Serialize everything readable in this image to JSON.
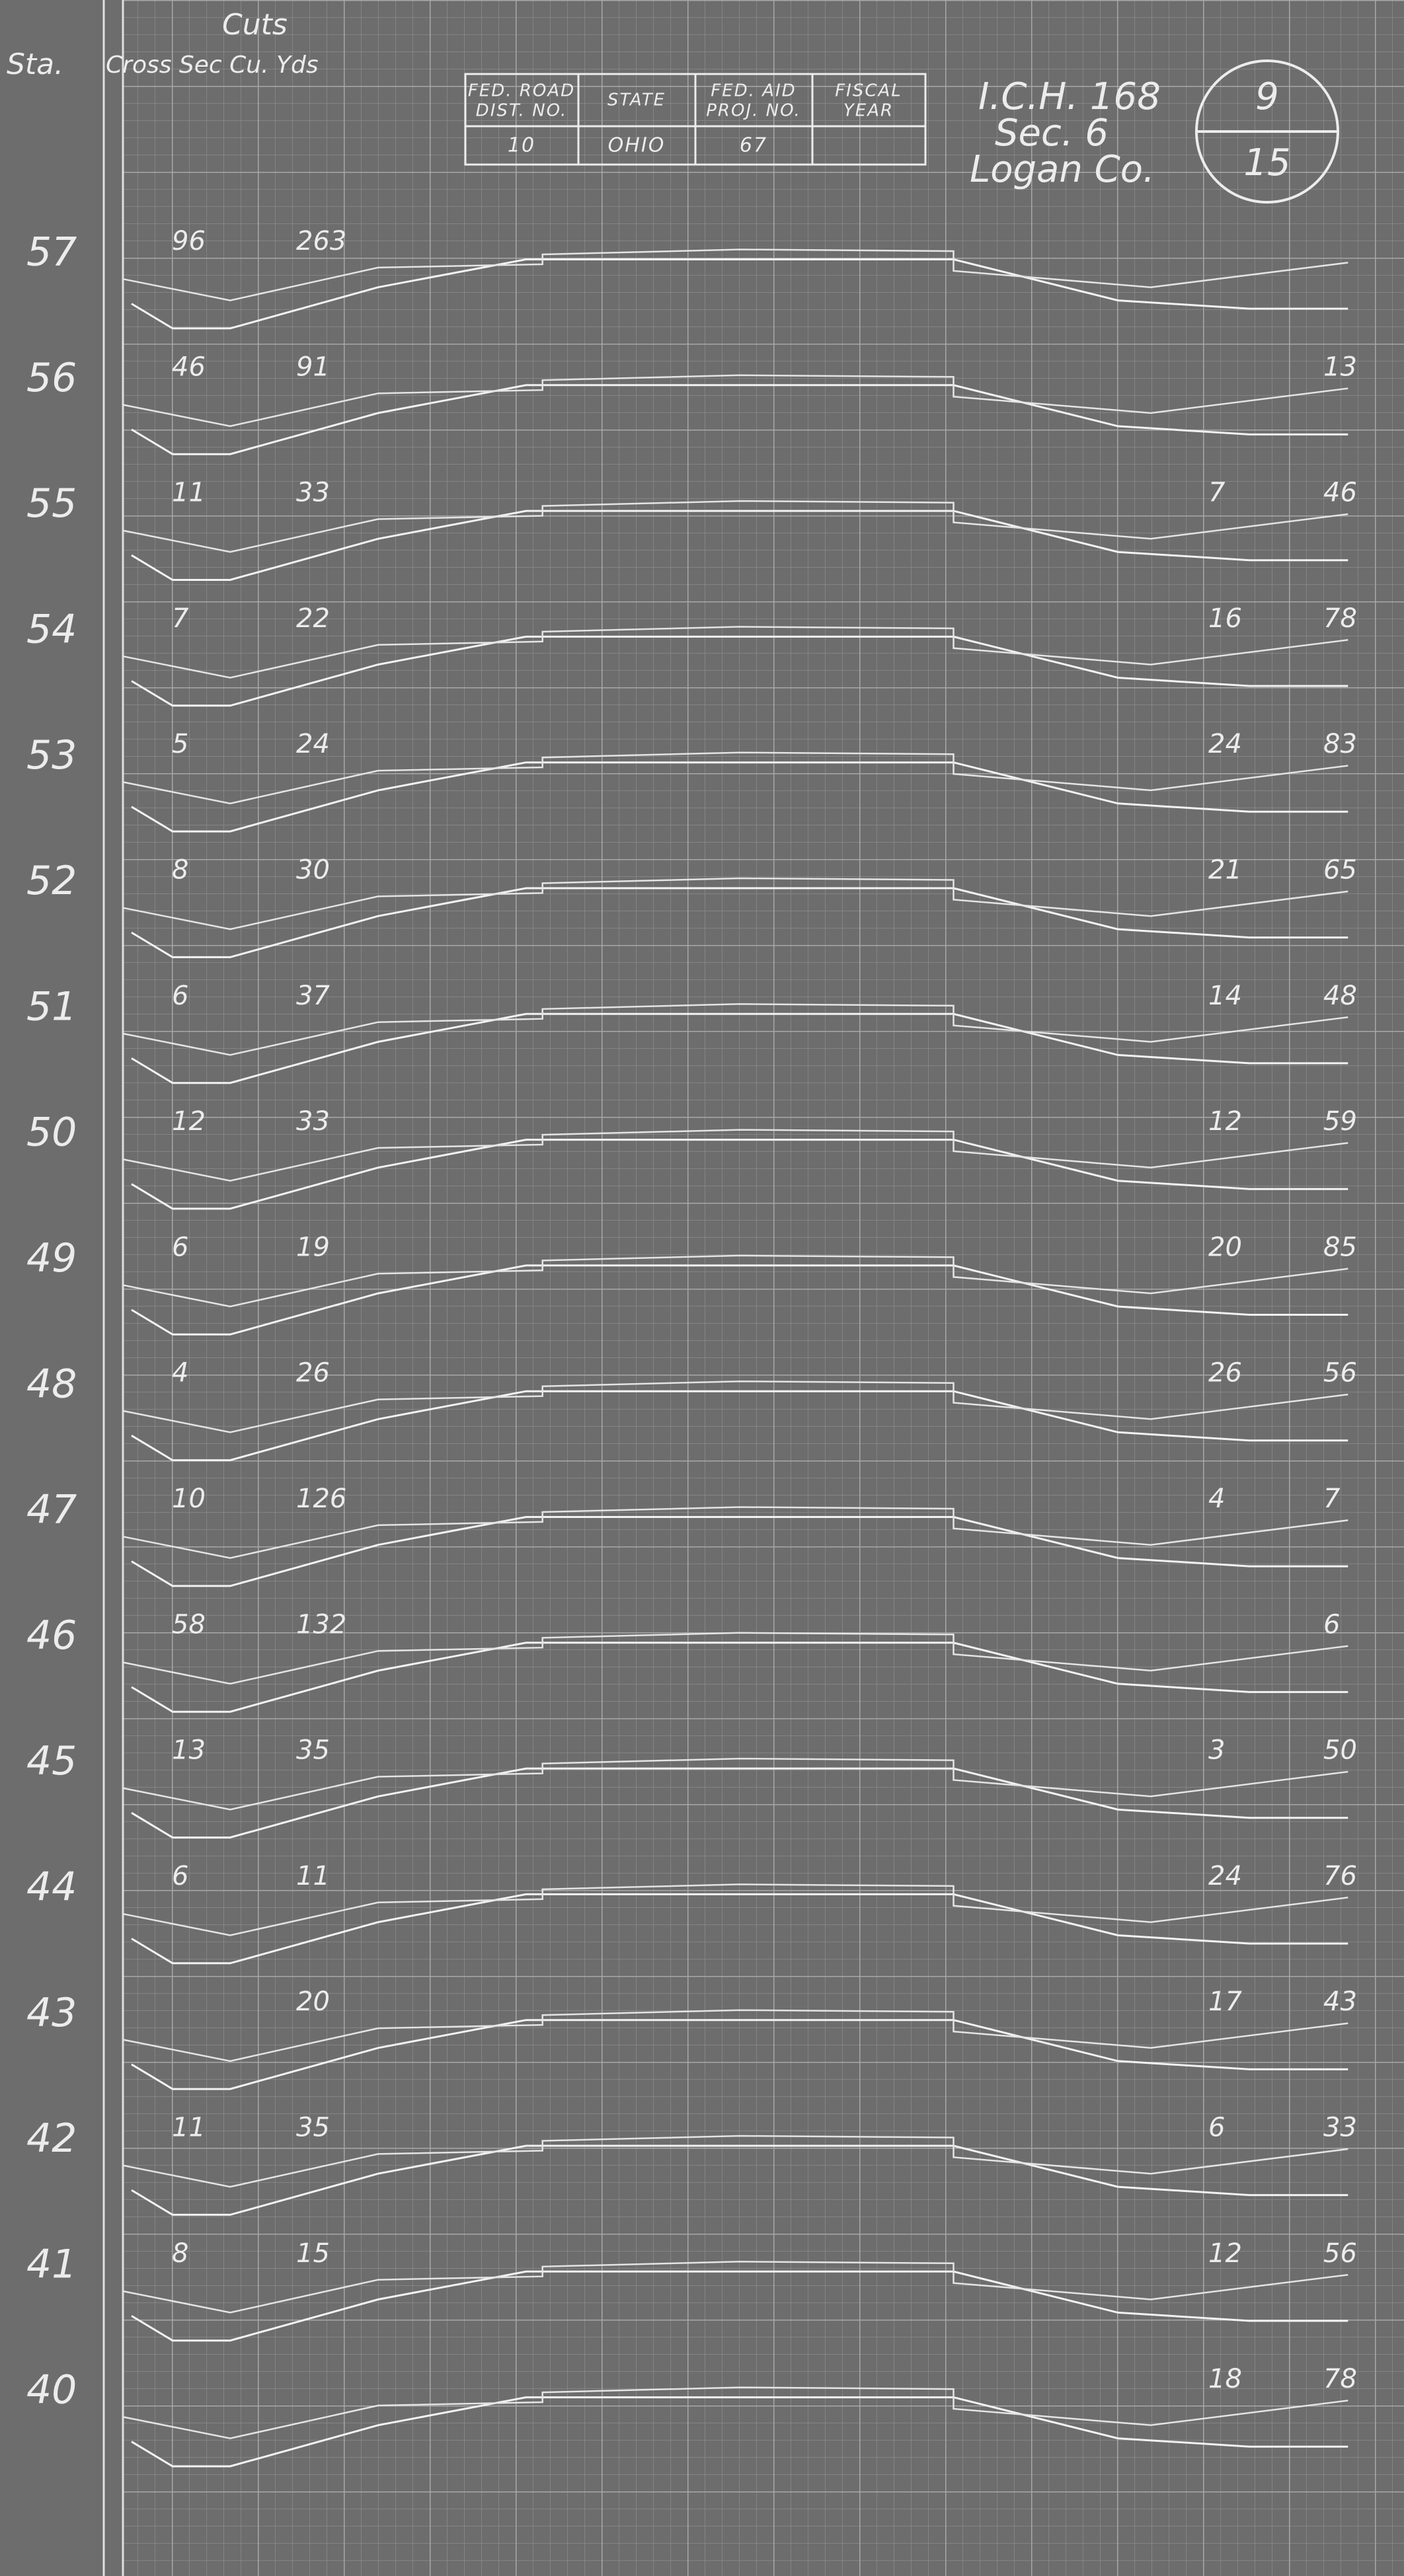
{
  "header": {
    "cuts": "Cuts",
    "sta": "Sta.",
    "columns": "Cross Sec Cu. Yds"
  },
  "project_table": {
    "headers": [
      [
        "FED. ROAD",
        "DIST. NO."
      ],
      [
        "STATE"
      ],
      [
        "FED. AID",
        "PROJ. NO."
      ],
      [
        "FISCAL",
        "YEAR"
      ]
    ],
    "values": [
      10,
      "OHIO",
      67
    ]
  },
  "project": {
    "route": "I.C.H. 168",
    "section": "Sec. 6",
    "county": "Logan Co.",
    "sheet": 9,
    "of": 15
  },
  "stations": [
    {
      "station": 57,
      "left_cross": 96,
      "left_cuyds": 263
    },
    {
      "station": 56,
      "left_cross": 46,
      "left_cuyds": 91,
      "right_cuyds": 13
    },
    {
      "station": 55,
      "left_cross": 11,
      "left_cuyds": 33,
      "right_cross": 7,
      "right_cuyds": 46
    },
    {
      "station": 54,
      "left_cross": 7,
      "left_cuyds": 22,
      "right_cross": 16,
      "right_cuyds": 78
    },
    {
      "station": 53,
      "left_cross": 5,
      "left_cuyds": 24,
      "right_cross": 24,
      "right_cuyds": 83
    },
    {
      "station": 52,
      "left_cross": 8,
      "left_cuyds": 30,
      "right_cross": 21,
      "right_cuyds": 65
    },
    {
      "station": 51,
      "left_cross": 6,
      "left_cuyds": 37,
      "right_cross": 14,
      "right_cuyds": 48
    },
    {
      "station": 50,
      "left_cross": 12,
      "left_cuyds": 33,
      "right_cross": 12,
      "right_cuyds": 59
    },
    {
      "station": 49,
      "left_cross": 6,
      "left_cuyds": 19,
      "right_cross": 20,
      "right_cuyds": 85
    },
    {
      "station": 48,
      "left_cross": 4,
      "left_cuyds": 26,
      "right_cross": 26,
      "right_cuyds": 56
    },
    {
      "station": 47,
      "left_cross": 10,
      "left_cuyds": 126,
      "right_cross": 4,
      "right_cuyds": 7
    },
    {
      "station": 46,
      "left_cross": 58,
      "left_cuyds": 132,
      "right_cuyds": 6
    },
    {
      "station": 45,
      "left_cross": 13,
      "left_cuyds": 35,
      "right_cross": 3,
      "right_cuyds": 50
    },
    {
      "station": 44,
      "left_cross": 6,
      "left_cuyds": 11,
      "right_cross": 24,
      "right_cuyds": 76
    },
    {
      "station": 43,
      "left_cuyds": 20,
      "right_cross": 17,
      "right_cuyds": 43
    },
    {
      "station": 42,
      "left_cross": 11,
      "left_cuyds": 35,
      "right_cross": 6,
      "right_cuyds": 33
    },
    {
      "station": 41,
      "left_cross": 8,
      "left_cuyds": 15,
      "right_cross": 12,
      "right_cuyds": 56
    },
    {
      "station": 40,
      "right_cross": 18,
      "right_cuyds": 78
    }
  ]
}
